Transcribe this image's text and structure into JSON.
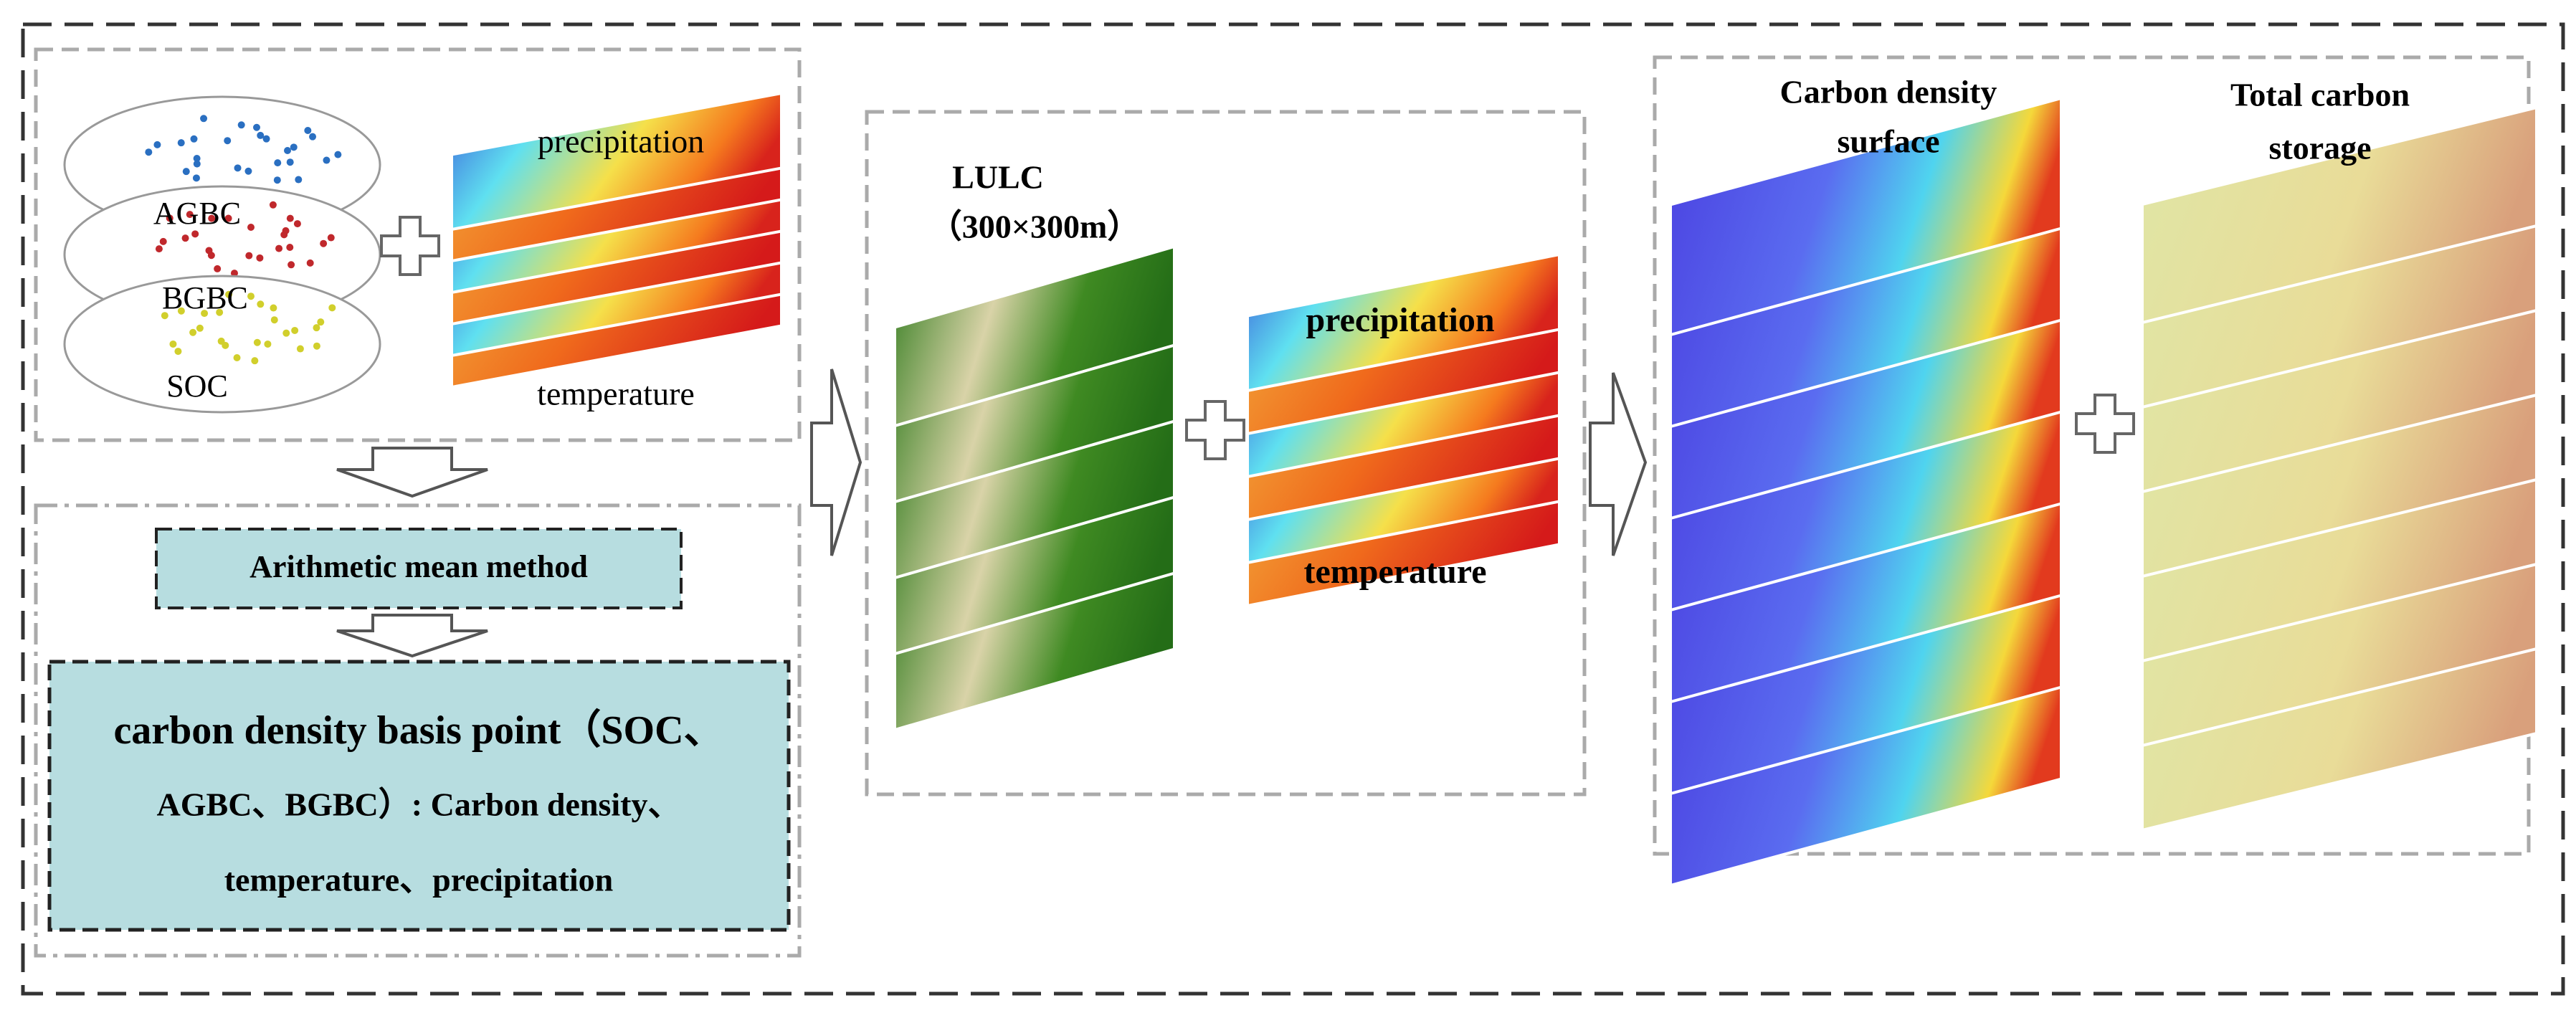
{
  "inputs": {
    "points": [
      "AGBC",
      "BGBC",
      "SOC"
    ],
    "climate": [
      "precipitation",
      "temperature"
    ]
  },
  "method": {
    "label": "Arithmetic mean method"
  },
  "basis": {
    "lines": [
      "carbon density basis point（SOC、",
      "AGBC、BGBC）: Carbon density、",
      "temperature、precipitation"
    ]
  },
  "lulc": {
    "title": [
      "LULC",
      "（300×300m）"
    ],
    "climate": [
      "precipitation",
      "temperature"
    ]
  },
  "outputs": {
    "density": [
      "Carbon density",
      "surface"
    ],
    "storage": [
      "Total carbon",
      "storage"
    ]
  }
}
